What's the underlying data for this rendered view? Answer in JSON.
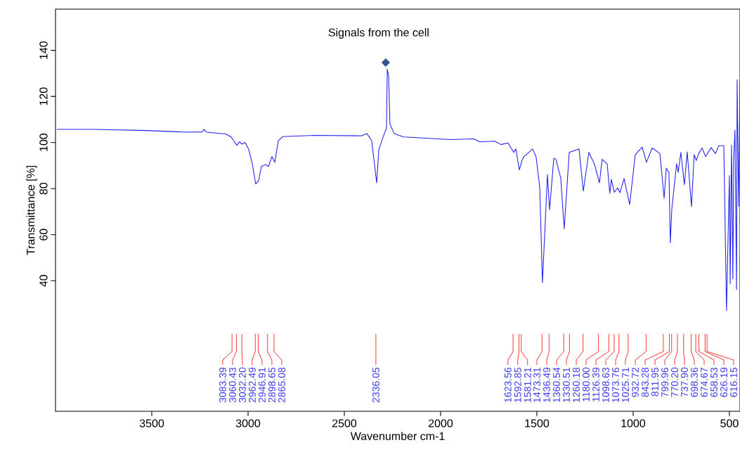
{
  "chart_data": {
    "type": "line",
    "xlabel": "Wavenumber cm-1",
    "ylabel": "Transmittance [%]",
    "xlim": [
      4000,
      445
    ],
    "ylim": [
      -16.7,
      157.9
    ],
    "xticks": [
      3500,
      3000,
      2500,
      2000,
      1500,
      1000,
      500
    ],
    "yticks": [
      40,
      60,
      80,
      100,
      120,
      140
    ],
    "grid": false,
    "marker": "none",
    "line_style": "solid",
    "series": [
      {
        "color": "#2222ee",
        "x": [
          3993,
          3799,
          3529,
          3325,
          3237,
          3230,
          3215,
          3117,
          3088,
          3058,
          3044,
          3033,
          3015,
          2996,
          2978,
          2960,
          2945,
          2931,
          2909,
          2894,
          2876,
          2861,
          2843,
          2818,
          2653,
          2412,
          2383,
          2358,
          2332,
          2321,
          2288,
          2281,
          2277,
          2270,
          2263,
          2241,
          2193,
          1949,
          1828,
          1796,
          1719,
          1686,
          1650,
          1620,
          1609,
          1591,
          1577,
          1569,
          1522,
          1504,
          1485,
          1471,
          1445,
          1434,
          1412,
          1401,
          1376,
          1358,
          1332,
          1281,
          1259,
          1230,
          1201,
          1175,
          1161,
          1135,
          1121,
          1113,
          1098,
          1080,
          1069,
          1047,
          1018,
          989,
          953,
          931,
          901,
          861,
          839,
          828,
          814,
          807,
          799,
          774,
          766,
          752,
          734,
          719,
          697,
          683,
          672,
          661,
          642,
          624,
          595,
          573,
          555,
          529,
          515,
          500,
          496,
          489,
          482,
          478,
          471,
          463,
          460,
          452,
          445
        ],
        "values": [
          105.7,
          105.7,
          105.2,
          104.5,
          104.6,
          105.7,
          104.5,
          103.7,
          102.4,
          98.8,
          100.3,
          99.3,
          100,
          96.9,
          90.7,
          82,
          83.5,
          89.6,
          90.4,
          89.6,
          93.9,
          91.4,
          100.8,
          102.6,
          103.1,
          102.9,
          103.9,
          100.8,
          82.5,
          96.9,
          104.9,
          106,
          131.9,
          128.9,
          108,
          103.9,
          102.4,
          101.3,
          101.6,
          100.3,
          100.6,
          99.1,
          99.8,
          95.7,
          97.2,
          88.1,
          92.2,
          93.7,
          97.2,
          93.7,
          80.5,
          39.2,
          86.1,
          70.8,
          93.2,
          92.7,
          84.5,
          62.6,
          95.7,
          97.2,
          78.9,
          95.7,
          90.7,
          82.5,
          92.7,
          90.7,
          77.9,
          84,
          78.4,
          80.3,
          78.2,
          84.3,
          73.1,
          94.7,
          98,
          91.4,
          97.6,
          95.2,
          75.9,
          88.8,
          87.1,
          56.5,
          71.3,
          90.8,
          87.1,
          95.7,
          81.7,
          95.9,
          72.1,
          94.7,
          92.2,
          94.9,
          97.6,
          93.9,
          97.8,
          95.2,
          98.6,
          98.6,
          27,
          85.6,
          38.7,
          98.8,
          40.8,
          92.7,
          105.4,
          36.2,
          127.3,
          72.3,
          126.8
        ]
      }
    ],
    "annotations": [
      {
        "text": "Signals from the cell",
        "x": 2285,
        "y": 134.7
      },
      {
        "text": "3083.39",
        "x": 3083.39
      },
      {
        "text": "3060.43",
        "x": 3060.43
      },
      {
        "text": "3032.20",
        "x": 3032.2
      },
      {
        "text": "2962.49",
        "x": 2962.49
      },
      {
        "text": "2946.91",
        "x": 2946.91
      },
      {
        "text": "2898.65",
        "x": 2898.65
      },
      {
        "text": "2865.08",
        "x": 2865.08
      },
      {
        "text": "2336.05",
        "x": 2336.05
      },
      {
        "text": "1623.56",
        "x": 1623.56
      },
      {
        "text": "1592.85",
        "x": 1592.85
      },
      {
        "text": "1581.21",
        "x": 1581.21
      },
      {
        "text": "1473.31",
        "x": 1473.31
      },
      {
        "text": "1436.49",
        "x": 1436.49
      },
      {
        "text": "1360.54",
        "x": 1360.54
      },
      {
        "text": "1330.51",
        "x": 1330.51
      },
      {
        "text": "1260.18",
        "x": 1260.18
      },
      {
        "text": "1180.00",
        "x": 1180.0
      },
      {
        "text": "1126.39",
        "x": 1126.39
      },
      {
        "text": "1098.63",
        "x": 1098.63
      },
      {
        "text": "1073.76",
        "x": 1073.76
      },
      {
        "text": "1025.71",
        "x": 1025.71
      },
      {
        "text": "932.72",
        "x": 932.72
      },
      {
        "text": "843.28",
        "x": 843.28
      },
      {
        "text": "811.95",
        "x": 811.95
      },
      {
        "text": "799.96",
        "x": 799.96
      },
      {
        "text": "770.20",
        "x": 770.2
      },
      {
        "text": "737.90",
        "x": 737.9
      },
      {
        "text": "698.36",
        "x": 698.36
      },
      {
        "text": "674.67",
        "x": 674.67
      },
      {
        "text": "658.53",
        "x": 658.53
      },
      {
        "text": "626.19",
        "x": 626.19
      },
      {
        "text": "616.15",
        "x": 616.15
      }
    ]
  }
}
